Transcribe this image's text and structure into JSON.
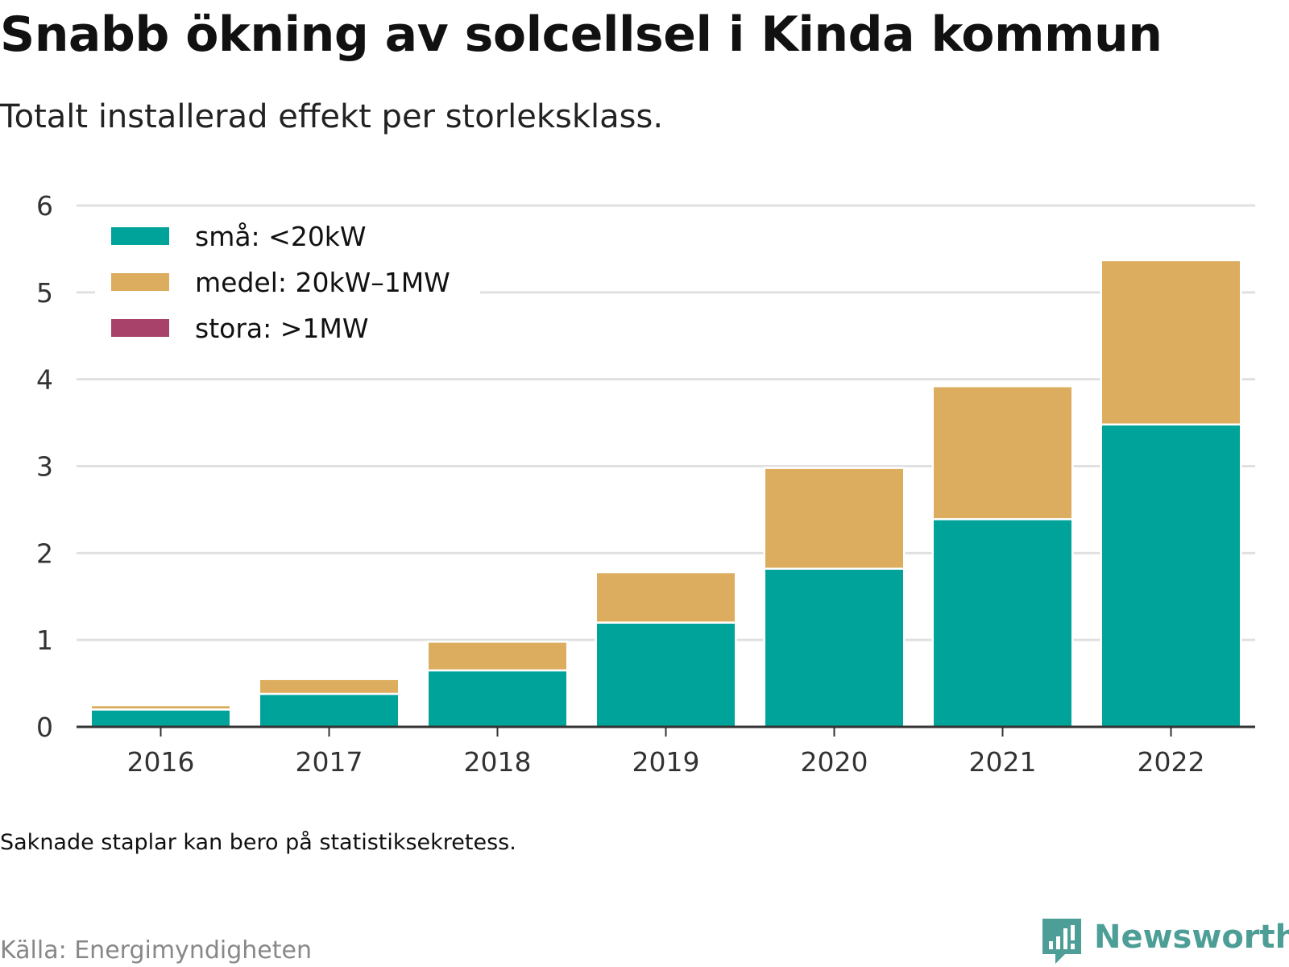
{
  "title": "Snabb ökning av solcellsel i Kinda kommun",
  "subtitle": "Totalt installerad effekt per storleksklass.",
  "note": "Saknade staplar kan bero på statistiksekretess.",
  "source": "Källa: Energimyndigheten",
  "brand": {
    "name": "Newsworthy",
    "icon": "newsworthy-logo-icon",
    "color": "#4d9e97"
  },
  "chart_data": {
    "type": "bar",
    "stacked": true,
    "title": "Snabb ökning av solcellsel i Kinda kommun",
    "subtitle": "Totalt installerad effekt per storleksklass.",
    "xlabel": "",
    "ylabel": "",
    "categories": [
      "2016",
      "2017",
      "2018",
      "2019",
      "2020",
      "2021",
      "2022"
    ],
    "series": [
      {
        "name": "små: <20kW",
        "color": "#00a39a",
        "values": [
          0.2,
          0.38,
          0.65,
          1.2,
          1.82,
          2.39,
          3.48
        ]
      },
      {
        "name": "medel: 20kW–1MW",
        "color": "#dcad5e",
        "values": [
          0.05,
          0.17,
          0.33,
          0.58,
          1.16,
          1.53,
          1.89
        ]
      },
      {
        "name": "stora: >1MW",
        "color": "#a8426b",
        "values": [
          0,
          0,
          0,
          0,
          0,
          0,
          0
        ]
      }
    ],
    "ylim": [
      0,
      6
    ],
    "yticks": [
      0,
      1,
      2,
      3,
      4,
      5,
      6
    ],
    "grid": true,
    "legend": "top-left"
  }
}
